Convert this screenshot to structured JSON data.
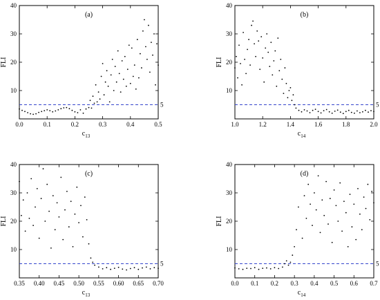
{
  "chart_data": [
    {
      "type": "scatter",
      "panel_label": "(a)",
      "xlabel": "c",
      "xlabel_sub": "13",
      "ylabel": "FLI",
      "xlim": [
        0,
        0.5
      ],
      "ylim": [
        0,
        40
      ],
      "xticks": [
        "0.0",
        "0.1",
        "0.2",
        "0.3",
        "0.4",
        "0.5"
      ],
      "yticks": [
        "10",
        "20",
        "30",
        "40"
      ],
      "ref_line": {
        "y": 5,
        "label": "5",
        "color": "#3344cc"
      },
      "x": [
        0.0,
        0.01,
        0.02,
        0.03,
        0.04,
        0.05,
        0.06,
        0.07,
        0.08,
        0.09,
        0.1,
        0.11,
        0.12,
        0.13,
        0.14,
        0.15,
        0.16,
        0.17,
        0.18,
        0.19,
        0.2,
        0.21,
        0.22,
        0.23,
        0.24,
        0.25,
        0.255,
        0.26,
        0.265,
        0.27,
        0.275,
        0.28,
        0.285,
        0.29,
        0.295,
        0.3,
        0.305,
        0.31,
        0.315,
        0.32,
        0.325,
        0.33,
        0.335,
        0.34,
        0.345,
        0.35,
        0.355,
        0.36,
        0.365,
        0.37,
        0.375,
        0.38,
        0.385,
        0.39,
        0.395,
        0.4,
        0.405,
        0.41,
        0.415,
        0.42,
        0.425,
        0.43,
        0.435,
        0.44,
        0.445,
        0.45,
        0.455,
        0.46,
        0.465,
        0.47,
        0.475,
        0.48,
        0.485,
        0.49,
        0.495,
        0.5
      ],
      "y": [
        3.5,
        3.0,
        2.6,
        2.2,
        1.8,
        1.6,
        1.8,
        2.3,
        2.6,
        2.9,
        3.2,
        2.9,
        2.5,
        2.8,
        3.2,
        3.6,
        3.9,
        4.0,
        3.6,
        3.0,
        2.5,
        2.2,
        3.2,
        2.0,
        3.5,
        4.0,
        6.5,
        3.8,
        8.0,
        5.5,
        12.0,
        6.0,
        9.5,
        7.0,
        15.0,
        19.5,
        8.5,
        13.0,
        17.0,
        11.5,
        6.0,
        15.5,
        21.0,
        10.0,
        18.5,
        13.0,
        24.0,
        16.0,
        9.5,
        20.5,
        14.0,
        22.0,
        11.5,
        17.5,
        26.0,
        12.5,
        25.0,
        15.0,
        19.0,
        10.5,
        28.0,
        14.5,
        23.0,
        18.0,
        31.0,
        35.0,
        25.5,
        21.0,
        33.0,
        16.5,
        27.0,
        22.5,
        30.0,
        12.0,
        26.5,
        19.0
      ]
    },
    {
      "type": "scatter",
      "panel_label": "(b)",
      "xlabel": "c",
      "xlabel_sub": "14",
      "ylabel": "FLI",
      "xlim": [
        1.0,
        2.0
      ],
      "ylim": [
        0,
        40
      ],
      "xticks": [
        "1.0",
        "1.2",
        "1.4",
        "1.6",
        "1.8",
        "2.0"
      ],
      "yticks": [
        "10",
        "20",
        "30",
        "40"
      ],
      "ref_line": {
        "y": 5,
        "label": "5",
        "color": "#3344cc"
      },
      "x": [
        1.0,
        1.01,
        1.02,
        1.03,
        1.04,
        1.05,
        1.06,
        1.07,
        1.08,
        1.09,
        1.1,
        1.11,
        1.12,
        1.13,
        1.14,
        1.15,
        1.16,
        1.17,
        1.18,
        1.19,
        1.2,
        1.21,
        1.22,
        1.23,
        1.24,
        1.25,
        1.26,
        1.27,
        1.28,
        1.29,
        1.3,
        1.31,
        1.32,
        1.33,
        1.34,
        1.35,
        1.36,
        1.37,
        1.38,
        1.39,
        1.4,
        1.41,
        1.42,
        1.43,
        1.44,
        1.46,
        1.48,
        1.5,
        1.52,
        1.54,
        1.56,
        1.58,
        1.6,
        1.62,
        1.64,
        1.66,
        1.68,
        1.7,
        1.72,
        1.74,
        1.76,
        1.78,
        1.8,
        1.82,
        1.84,
        1.86,
        1.88,
        1.9,
        1.92,
        1.94,
        1.96,
        1.98,
        2.0
      ],
      "y": [
        18.0,
        22.0,
        14.5,
        26.0,
        19.5,
        12.0,
        30.5,
        21.0,
        16.0,
        24.5,
        28.0,
        19.0,
        33.0,
        34.5,
        26.5,
        22.0,
        31.0,
        27.5,
        17.5,
        29.0,
        21.5,
        13.0,
        25.0,
        30.0,
        23.5,
        18.5,
        27.0,
        15.5,
        20.5,
        24.0,
        11.5,
        28.5,
        17.0,
        21.0,
        14.0,
        9.0,
        18.0,
        12.5,
        7.5,
        10.0,
        11.0,
        6.5,
        8.5,
        5.0,
        3.8,
        3.0,
        2.5,
        3.2,
        2.8,
        2.2,
        3.0,
        3.4,
        2.6,
        2.1,
        2.9,
        3.3,
        2.5,
        2.0,
        2.7,
        3.1,
        2.4,
        1.9,
        2.6,
        3.0,
        2.3,
        2.0,
        2.8,
        2.2,
        2.5,
        3.0,
        2.4,
        2.9,
        2.6
      ]
    },
    {
      "type": "scatter",
      "panel_label": "(c)",
      "xlabel": "c",
      "xlabel_sub": "13",
      "ylabel": "FLI",
      "xlim": [
        0.35,
        0.7
      ],
      "ylim": [
        0,
        40
      ],
      "xticks": [
        "0.35",
        "0.40",
        "0.45",
        "0.50",
        "0.55",
        "0.60",
        "0.65",
        "0.70"
      ],
      "yticks": [
        "10",
        "20",
        "30",
        "40"
      ],
      "ref_line": {
        "y": 5,
        "label": "5",
        "color": "#3344cc"
      },
      "x": [
        0.35,
        0.355,
        0.36,
        0.365,
        0.37,
        0.375,
        0.38,
        0.385,
        0.39,
        0.395,
        0.4,
        0.405,
        0.41,
        0.415,
        0.42,
        0.425,
        0.43,
        0.435,
        0.44,
        0.445,
        0.45,
        0.455,
        0.46,
        0.465,
        0.47,
        0.475,
        0.48,
        0.485,
        0.49,
        0.495,
        0.5,
        0.505,
        0.51,
        0.515,
        0.52,
        0.525,
        0.53,
        0.535,
        0.54,
        0.55,
        0.56,
        0.57,
        0.58,
        0.59,
        0.6,
        0.61,
        0.62,
        0.63,
        0.64,
        0.65,
        0.66,
        0.67,
        0.68,
        0.69,
        0.7
      ],
      "y": [
        34.0,
        22.0,
        27.5,
        16.5,
        30.0,
        21.0,
        35.0,
        18.5,
        25.0,
        31.5,
        14.0,
        28.0,
        38.5,
        20.0,
        33.0,
        23.5,
        10.5,
        29.0,
        17.0,
        26.5,
        21.5,
        35.5,
        13.5,
        24.0,
        30.5,
        18.0,
        27.0,
        11.0,
        22.5,
        32.0,
        19.5,
        25.5,
        14.5,
        28.5,
        20.5,
        12.0,
        7.0,
        5.5,
        4.5,
        3.8,
        3.2,
        3.6,
        3.0,
        3.4,
        3.7,
        3.1,
        2.8,
        3.3,
        3.6,
        3.0,
        3.5,
        3.8,
        3.2,
        3.6,
        3.4
      ]
    },
    {
      "type": "scatter",
      "panel_label": "(d)",
      "xlabel": "c",
      "xlabel_sub": "14",
      "ylabel": "FLI",
      "xlim": [
        0.0,
        0.7
      ],
      "ylim": [
        0,
        40
      ],
      "xticks": [
        "0.0",
        "0.1",
        "0.2",
        "0.3",
        "0.4",
        "0.5",
        "0.6",
        "0.7"
      ],
      "yticks": [
        "10",
        "20",
        "30",
        "40"
      ],
      "ref_line": {
        "y": 5,
        "label": "5",
        "color": "#3344cc"
      },
      "x": [
        0.0,
        0.02,
        0.04,
        0.06,
        0.08,
        0.1,
        0.12,
        0.14,
        0.16,
        0.18,
        0.2,
        0.22,
        0.24,
        0.25,
        0.26,
        0.27,
        0.28,
        0.29,
        0.3,
        0.31,
        0.32,
        0.34,
        0.35,
        0.36,
        0.37,
        0.38,
        0.39,
        0.4,
        0.41,
        0.42,
        0.43,
        0.44,
        0.45,
        0.46,
        0.47,
        0.48,
        0.49,
        0.5,
        0.51,
        0.52,
        0.53,
        0.54,
        0.55,
        0.56,
        0.57,
        0.58,
        0.59,
        0.6,
        0.61,
        0.62,
        0.63,
        0.64,
        0.65,
        0.66,
        0.67,
        0.68,
        0.69,
        0.7
      ],
      "y": [
        3.5,
        3.2,
        3.0,
        3.4,
        3.3,
        3.6,
        3.0,
        3.4,
        3.5,
        3.2,
        3.6,
        3.3,
        3.8,
        5.0,
        6.0,
        4.5,
        5.5,
        8.0,
        11.0,
        17.0,
        25.0,
        14.0,
        29.0,
        21.0,
        33.0,
        26.0,
        18.5,
        30.0,
        24.0,
        36.0,
        16.0,
        27.5,
        22.0,
        34.0,
        19.0,
        28.0,
        12.5,
        31.0,
        25.5,
        20.0,
        33.5,
        16.5,
        27.0,
        23.0,
        11.0,
        29.5,
        18.0,
        26.0,
        13.5,
        31.5,
        22.5,
        17.0,
        28.5,
        24.5,
        33.0,
        20.5,
        30.5,
        26.5
      ]
    }
  ]
}
